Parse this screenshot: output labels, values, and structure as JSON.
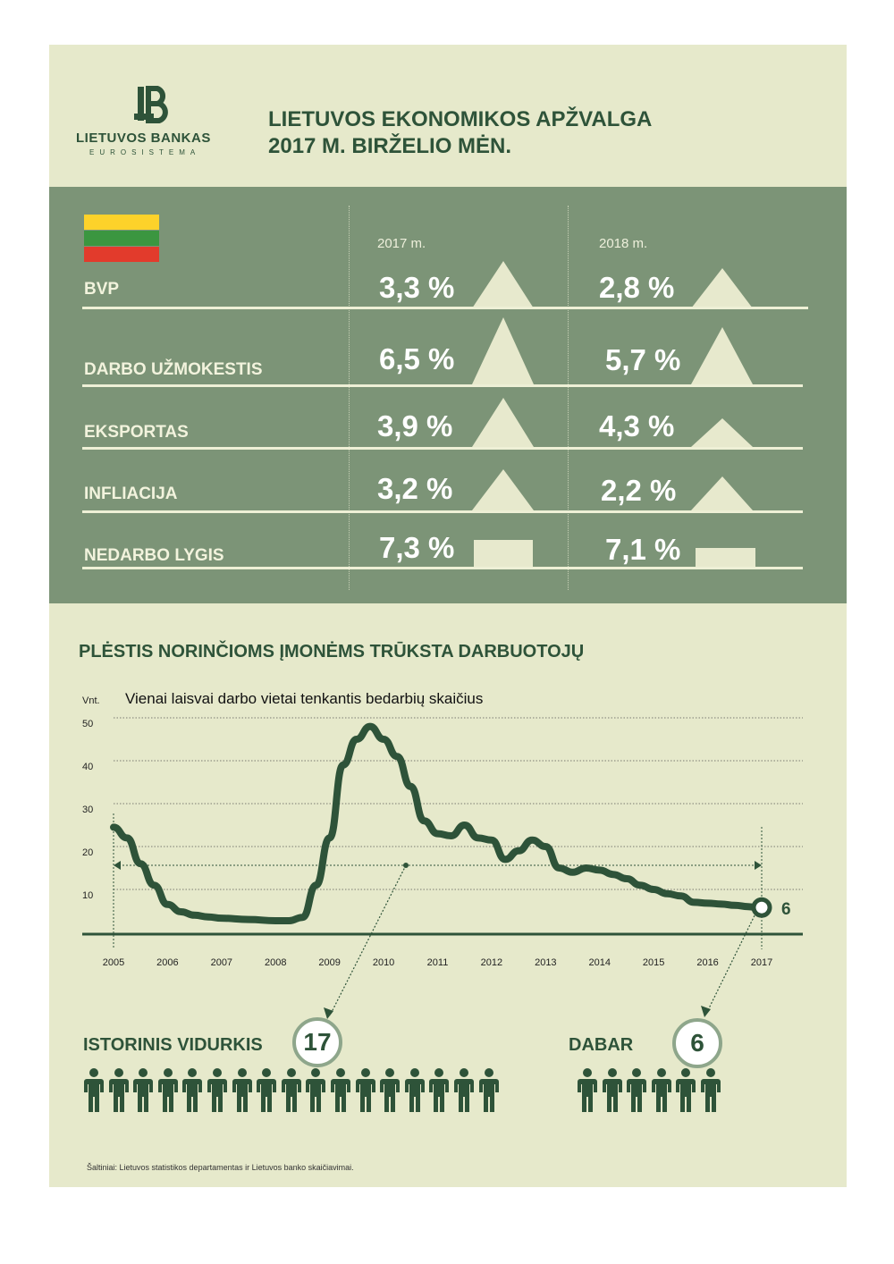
{
  "header": {
    "logo_name": "LIETUVOS BANKAS",
    "logo_sub": "EUROSISTEMA",
    "title_line1": "LIETUVOS EKONOMIKOS APŽVALGA",
    "title_line2": "2017 M. BIRŽELIO MĖN."
  },
  "flag": {
    "colors": [
      "#fdd22a",
      "#3b9640",
      "#e23b2c"
    ]
  },
  "indicators": {
    "years": [
      "2017 m.",
      "2018 m."
    ],
    "rows": [
      {
        "label": "BVP",
        "v2017": "3,3 %",
        "v2018": "2,8 %",
        "n2017": 3.3,
        "n2018": 2.8,
        "shape": "triangle"
      },
      {
        "label": "DARBO UŽMOKESTIS",
        "v2017": "6,5 %",
        "v2018": "5,7 %",
        "n2017": 6.5,
        "n2018": 5.7,
        "shape": "triangle"
      },
      {
        "label": "EKSPORTAS",
        "v2017": "3,9 %",
        "v2018": "4,3 %",
        "n2017": 3.9,
        "n2018": 4.3,
        "shape": "triangle"
      },
      {
        "label": "INFLIACIJA",
        "v2017": "3,2 %",
        "v2018": "2,2 %",
        "n2017": 3.2,
        "n2018": 2.2,
        "shape": "triangle"
      },
      {
        "label": "NEDARBO LYGIS",
        "v2017": "7,3 %",
        "v2018": "7,1 %",
        "n2017": 7.3,
        "n2018": 7.1,
        "shape": "rectangle"
      }
    ]
  },
  "section2": {
    "title": "PLĖSTIS NORINČIOMS ĮMONĖMS TRŪKSTA DARBUOTOJŲ"
  },
  "chart_data": {
    "type": "line",
    "title": "Vienai laisvai darbo vietai tenkantis bedarbių skaičius",
    "ylabel": "Vnt.",
    "ylim": [
      0,
      50
    ],
    "yticks": [
      "10",
      "20",
      "30",
      "40",
      "50"
    ],
    "xticks": [
      "2005",
      "2006",
      "2007",
      "2008",
      "2009",
      "2010",
      "2011",
      "2012",
      "2013",
      "2014",
      "2015",
      "2016",
      "2017"
    ],
    "grid": true,
    "series": [
      {
        "x": [
          2005.0,
          2005.25,
          2005.5,
          2005.75,
          2006.0,
          2006.25,
          2006.5,
          2006.75,
          2007.0,
          2007.5,
          2008.0,
          2008.25,
          2008.5,
          2008.75,
          2009.0,
          2009.25,
          2009.5,
          2009.75,
          2010.0,
          2010.25,
          2010.5,
          2010.75,
          2011.0,
          2011.25,
          2011.5,
          2011.75,
          2012.0,
          2012.25,
          2012.5,
          2012.75,
          2013.0,
          2013.25,
          2013.5,
          2013.75,
          2014.0,
          2014.25,
          2014.5,
          2014.75,
          2015.0,
          2015.25,
          2015.5,
          2015.75,
          2016.0,
          2016.25,
          2016.5,
          2016.75,
          2017.0
        ],
        "y": [
          24.5,
          22,
          16,
          11,
          6.5,
          4.8,
          4,
          3.6,
          3.3,
          3.0,
          2.7,
          2.7,
          3.5,
          11,
          22,
          39,
          45,
          48,
          45,
          41,
          34,
          26,
          23,
          22.5,
          25,
          22,
          21.5,
          17,
          19,
          21.5,
          20,
          15,
          14,
          15,
          14.5,
          13.5,
          12.5,
          11,
          10,
          9,
          8.5,
          7,
          6.8,
          6.6,
          6.3,
          6.0,
          5.5
        ]
      }
    ],
    "reference_line": {
      "label": "17",
      "value": 17
    },
    "end_label": "6",
    "end_value": 6
  },
  "people": {
    "hist_title": "ISTORINIS VIDURKIS",
    "hist_value": "17",
    "hist_count": 17,
    "now_title": "DABAR",
    "now_value": "6",
    "now_count": 6
  },
  "source": "Šaltiniai: Lietuvos statistikos departamentas ir Lietuvos banko skaičiavimai."
}
